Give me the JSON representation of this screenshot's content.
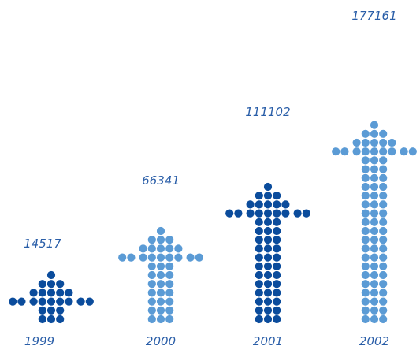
{
  "chart_data": {
    "type": "bar",
    "title": "",
    "xlabel": "",
    "ylabel": "",
    "categories": [
      "1999",
      "2000",
      "2001",
      "2002"
    ],
    "values": [
      14517,
      66341,
      111102,
      177161
    ],
    "value_labels": [
      "14517",
      "66341",
      "111102",
      "177161"
    ],
    "grid": false,
    "legend": "none",
    "mark_style": "dotted-arrow",
    "colors": [
      "#0b4c9c",
      "#5b9bd5",
      "#0b4c9c",
      "#5b9bd5"
    ],
    "label_color": "#2a5ea8"
  }
}
